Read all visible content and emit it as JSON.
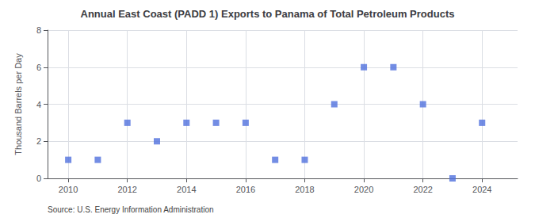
{
  "chart_data": {
    "type": "scatter",
    "title": "Annual East Coast (PADD 1) Exports to Panama of Total Petroleum Products",
    "ylabel": "Thousand Barrels per Day",
    "annotation": "Source: U.S. Energy Information Administration",
    "x": [
      2010,
      2011,
      2012,
      2013,
      2014,
      2015,
      2016,
      2017,
      2018,
      2019,
      2020,
      2021,
      2022,
      2023,
      2024
    ],
    "values": [
      1,
      1,
      3,
      2,
      3,
      3,
      3,
      1,
      1,
      4,
      6,
      6,
      4,
      0,
      3
    ],
    "marker": "square",
    "xlim": [
      2009.3,
      2025.2
    ],
    "xticks": [
      2010,
      2012,
      2014,
      2016,
      2018,
      2020,
      2022,
      2024
    ],
    "ylim": [
      0,
      8
    ],
    "yticks": [
      0,
      2,
      4,
      6,
      8
    ],
    "grid": true
  }
}
